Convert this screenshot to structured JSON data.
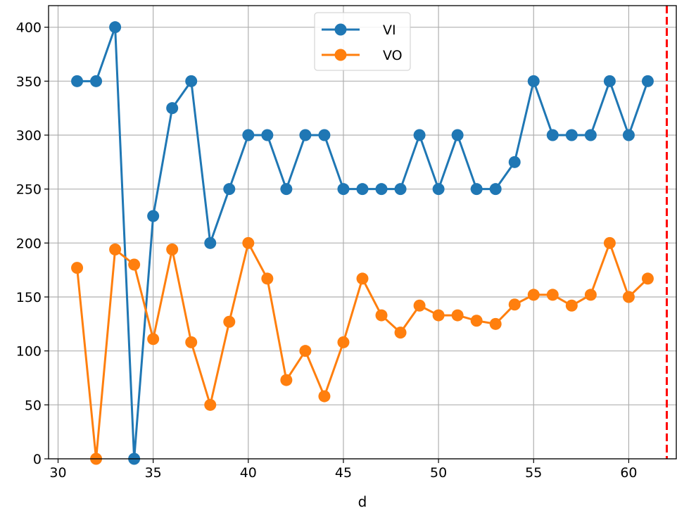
{
  "chart_data": {
    "type": "line",
    "title": "",
    "xlabel": "d",
    "ylabel": "",
    "xlim": [
      29.5,
      62.5
    ],
    "ylim": [
      0,
      420
    ],
    "grid": true,
    "legend_position": "top-center",
    "x": [
      31,
      32,
      33,
      34,
      35,
      36,
      37,
      38,
      39,
      40,
      41,
      42,
      43,
      44,
      45,
      46,
      47,
      48,
      49,
      50,
      51,
      52,
      53,
      54,
      55,
      56,
      57,
      58,
      59,
      60,
      61
    ],
    "xticks": [
      "30",
      "35",
      "40",
      "45",
      "50",
      "55",
      "60"
    ],
    "yticks": [
      "0",
      "50",
      "100",
      "150",
      "200",
      "250",
      "300",
      "350",
      "400"
    ],
    "series": [
      {
        "name": "VI",
        "color": "#1f77b4",
        "values": [
          350,
          350,
          400,
          0,
          225,
          325,
          350,
          200,
          250,
          300,
          300,
          250,
          300,
          300,
          250,
          250,
          250,
          250,
          300,
          250,
          300,
          250,
          250,
          275,
          350,
          300,
          300,
          300,
          350,
          300,
          350
        ]
      },
      {
        "name": "VO",
        "color": "#ff7f0e",
        "values": [
          177,
          0,
          194,
          180,
          111,
          194,
          108,
          50,
          127,
          200,
          167,
          73,
          100,
          58,
          108,
          167,
          133,
          117,
          142,
          133,
          133,
          128,
          125,
          143,
          152,
          152,
          142,
          152,
          200,
          150,
          167
        ]
      }
    ],
    "reference_lines": [
      {
        "orientation": "vertical",
        "x": 62,
        "color": "#ff0000",
        "style": "dashed"
      }
    ]
  }
}
